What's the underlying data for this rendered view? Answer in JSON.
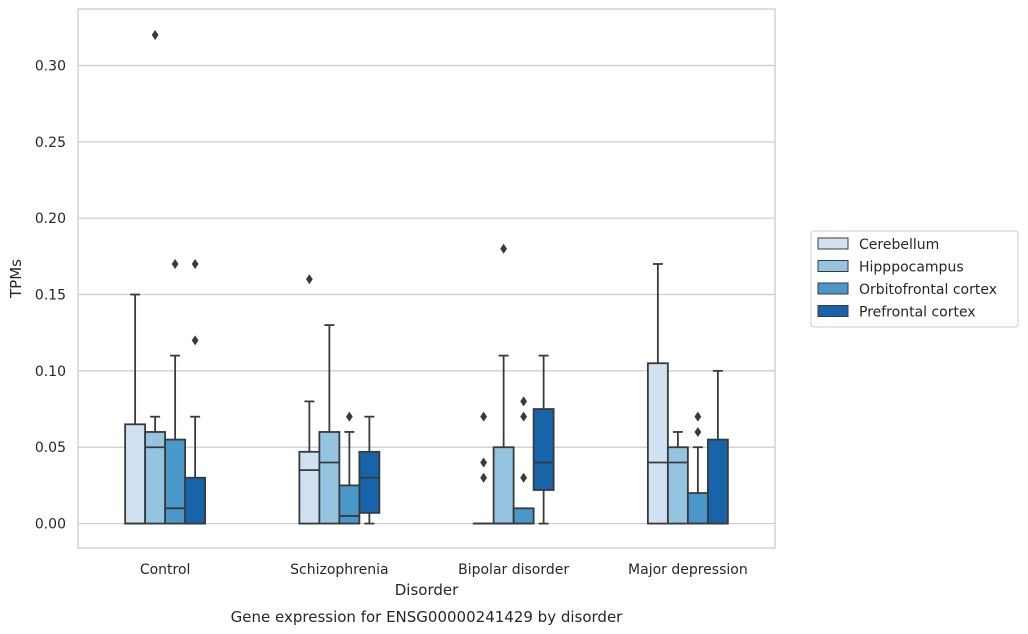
{
  "chart_data": {
    "type": "boxplot",
    "title": "",
    "caption": "Gene expression for ENSG00000241429 by disorder",
    "xlabel": "Disorder",
    "ylabel": "TPMs",
    "ylim": [
      -0.016,
      0.337
    ],
    "yticks": [
      0.0,
      0.05,
      0.1,
      0.15,
      0.2,
      0.25,
      0.3
    ],
    "ytick_labels": [
      "0.00",
      "0.05",
      "0.10",
      "0.15",
      "0.20",
      "0.25",
      "0.30"
    ],
    "grid": "horizontal",
    "legend_position": "right",
    "categories": [
      "Control",
      "Schizophrenia",
      "Bipolar disorder",
      "Major depression"
    ],
    "series": [
      {
        "name": "Cerebellum",
        "color": "#d0e1f2",
        "boxes": [
          {
            "q1": 0.0,
            "median": 0.0,
            "q3": 0.065,
            "whislo": 0.0,
            "whishi": 0.15,
            "fliers": []
          },
          {
            "q1": 0.0,
            "median": 0.035,
            "q3": 0.047,
            "whislo": 0.0,
            "whishi": 0.08,
            "fliers": [
              0.16
            ]
          },
          {
            "q1": 0.0,
            "median": 0.0,
            "q3": 0.0,
            "whislo": 0.0,
            "whishi": 0.0,
            "fliers": [
              0.07,
              0.04,
              0.03
            ]
          },
          {
            "q1": 0.0,
            "median": 0.04,
            "q3": 0.105,
            "whislo": 0.0,
            "whishi": 0.17,
            "fliers": []
          }
        ]
      },
      {
        "name": "Hipppocampus",
        "color": "#94c4df",
        "boxes": [
          {
            "q1": 0.0,
            "median": 0.05,
            "q3": 0.06,
            "whislo": 0.0,
            "whishi": 0.07,
            "fliers": [
              0.32
            ]
          },
          {
            "q1": 0.0,
            "median": 0.04,
            "q3": 0.06,
            "whislo": 0.0,
            "whishi": 0.13,
            "fliers": []
          },
          {
            "q1": 0.0,
            "median": 0.0,
            "q3": 0.05,
            "whislo": 0.0,
            "whishi": 0.11,
            "fliers": [
              0.18
            ]
          },
          {
            "q1": 0.0,
            "median": 0.04,
            "q3": 0.05,
            "whislo": 0.0,
            "whishi": 0.06,
            "fliers": []
          }
        ]
      },
      {
        "name": "Orbitofrontal cortex",
        "color": "#4a98c9",
        "boxes": [
          {
            "q1": 0.0,
            "median": 0.01,
            "q3": 0.055,
            "whislo": 0.0,
            "whishi": 0.11,
            "fliers": [
              0.17
            ]
          },
          {
            "q1": 0.0,
            "median": 0.005,
            "q3": 0.025,
            "whislo": 0.0,
            "whishi": 0.06,
            "fliers": [
              0.07
            ]
          },
          {
            "q1": 0.0,
            "median": 0.0,
            "q3": 0.01,
            "whislo": 0.0,
            "whishi": 0.01,
            "fliers": [
              0.08,
              0.07,
              0.03
            ]
          },
          {
            "q1": 0.0,
            "median": 0.0,
            "q3": 0.02,
            "whislo": 0.0,
            "whishi": 0.05,
            "fliers": [
              0.07,
              0.06
            ]
          }
        ]
      },
      {
        "name": "Prefrontal cortex",
        "color": "#1764ab",
        "boxes": [
          {
            "q1": 0.0,
            "median": 0.0,
            "q3": 0.03,
            "whislo": 0.0,
            "whishi": 0.07,
            "fliers": [
              0.17,
              0.12
            ]
          },
          {
            "q1": 0.007,
            "median": 0.03,
            "q3": 0.047,
            "whislo": 0.0,
            "whishi": 0.07,
            "fliers": []
          },
          {
            "q1": 0.022,
            "median": 0.04,
            "q3": 0.075,
            "whislo": 0.0,
            "whishi": 0.11,
            "fliers": []
          },
          {
            "q1": 0.0,
            "median": 0.0,
            "q3": 0.055,
            "whislo": 0.0,
            "whishi": 0.1,
            "fliers": []
          }
        ]
      }
    ]
  }
}
